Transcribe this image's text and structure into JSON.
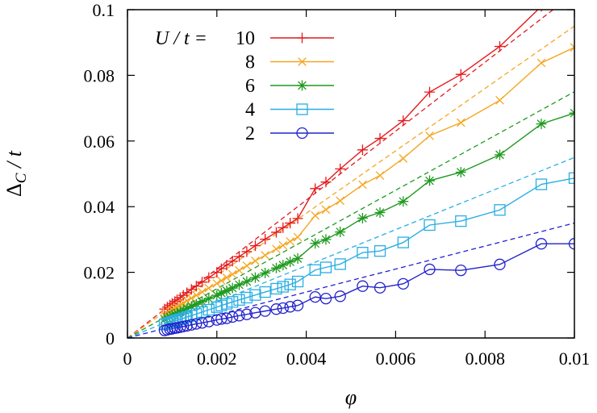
{
  "chart_data": {
    "type": "line",
    "title": "",
    "xlabel": "φ",
    "ylabel": "Δ_C / t",
    "ylabel_main": "Δ",
    "ylabel_sub": "C",
    "ylabel_rest": " / t",
    "xlim": [
      0,
      0.01
    ],
    "ylim": [
      0,
      0.1
    ],
    "xticks": [
      "0",
      "0.002",
      "0.004",
      "0.006",
      "0.008",
      "0.01"
    ],
    "yticks": [
      "0",
      "0.02",
      "0.04",
      "0.06",
      "0.08",
      "0.1"
    ],
    "xtick_values": [
      0,
      0.002,
      0.004,
      0.006,
      0.008,
      0.01
    ],
    "ytick_values": [
      0,
      0.02,
      0.04,
      0.06,
      0.08,
      0.1
    ],
    "legend_title": "U / t = ",
    "legend_position": "top-left",
    "grid": false,
    "x": [
      0.00083,
      0.00089,
      0.00095,
      0.001,
      0.00106,
      0.00111,
      0.00118,
      0.00125,
      0.00133,
      0.00143,
      0.00154,
      0.00167,
      0.00182,
      0.002,
      0.0021,
      0.00222,
      0.00235,
      0.0025,
      0.00267,
      0.00286,
      0.00308,
      0.00333,
      0.00348,
      0.00364,
      0.00381,
      0.0042,
      0.00444,
      0.00476,
      0.00526,
      0.00565,
      0.00617,
      0.00676,
      0.00746,
      0.00833,
      0.00926,
      0.01
    ],
    "series": [
      {
        "name": "10",
        "color": "#e41a1c",
        "marker": "plus",
        "values": [
          0.0088,
          0.0094,
          0.01,
          0.0105,
          0.0111,
          0.0116,
          0.0123,
          0.013,
          0.0138,
          0.0148,
          0.0158,
          0.017,
          0.0184,
          0.02,
          0.0211,
          0.0222,
          0.0234,
          0.0248,
          0.0263,
          0.0281,
          0.0301,
          0.0322,
          0.0336,
          0.035,
          0.0364,
          0.0455,
          0.0475,
          0.0515,
          0.0573,
          0.0608,
          0.0662,
          0.0749,
          0.0803,
          0.0888,
          0.101,
          0.103
        ],
        "slope": 10.5
      },
      {
        "name": "8",
        "color": "#f5a623",
        "marker": "cross",
        "values": [
          0.0071,
          0.0076,
          0.0081,
          0.0086,
          0.009,
          0.0095,
          0.01,
          0.0106,
          0.0113,
          0.0121,
          0.013,
          0.014,
          0.0152,
          0.0166,
          0.0175,
          0.0184,
          0.0194,
          0.0206,
          0.022,
          0.0235,
          0.0252,
          0.0271,
          0.0282,
          0.0294,
          0.0307,
          0.0373,
          0.0391,
          0.0418,
          0.0467,
          0.0495,
          0.0547,
          0.0616,
          0.0656,
          0.0724,
          0.0838,
          0.0885
        ],
        "slope": 9.5
      },
      {
        "name": "6",
        "color": "#1f9a1f",
        "marker": "star",
        "values": [
          0.0057,
          0.0061,
          0.0065,
          0.0069,
          0.0072,
          0.0076,
          0.008,
          0.0085,
          0.009,
          0.0096,
          0.0103,
          0.0111,
          0.012,
          0.013,
          0.0137,
          0.0144,
          0.0152,
          0.0162,
          0.0172,
          0.0184,
          0.0198,
          0.0213,
          0.0222,
          0.0232,
          0.0242,
          0.0288,
          0.03,
          0.0323,
          0.0365,
          0.0382,
          0.0416,
          0.0479,
          0.0505,
          0.0558,
          0.0652,
          0.0685
        ],
        "slope": 7.5
      },
      {
        "name": "4",
        "color": "#29aee3",
        "marker": "square",
        "values": [
          0.0041,
          0.0044,
          0.0046,
          0.0049,
          0.0052,
          0.0054,
          0.0057,
          0.006,
          0.0064,
          0.0068,
          0.0073,
          0.0079,
          0.0086,
          0.0094,
          0.0099,
          0.0104,
          0.011,
          0.0116,
          0.0123,
          0.0131,
          0.014,
          0.015,
          0.0156,
          0.0163,
          0.0172,
          0.0207,
          0.0215,
          0.0225,
          0.026,
          0.0265,
          0.0291,
          0.0344,
          0.0356,
          0.039,
          0.0468,
          0.0487
        ],
        "slope": 5.5
      },
      {
        "name": "2",
        "color": "#2222cc",
        "marker": "circle",
        "values": [
          0.0023,
          0.0025,
          0.0027,
          0.0028,
          0.003,
          0.0031,
          0.0033,
          0.0035,
          0.0037,
          0.004,
          0.0043,
          0.0046,
          0.005,
          0.0055,
          0.0058,
          0.006,
          0.0064,
          0.0068,
          0.0072,
          0.0077,
          0.0082,
          0.0088,
          0.0091,
          0.0095,
          0.0099,
          0.0125,
          0.012,
          0.0127,
          0.0158,
          0.0153,
          0.0165,
          0.0209,
          0.0206,
          0.0224,
          0.0287,
          0.0287
        ],
        "slope": 3.5
      }
    ]
  }
}
